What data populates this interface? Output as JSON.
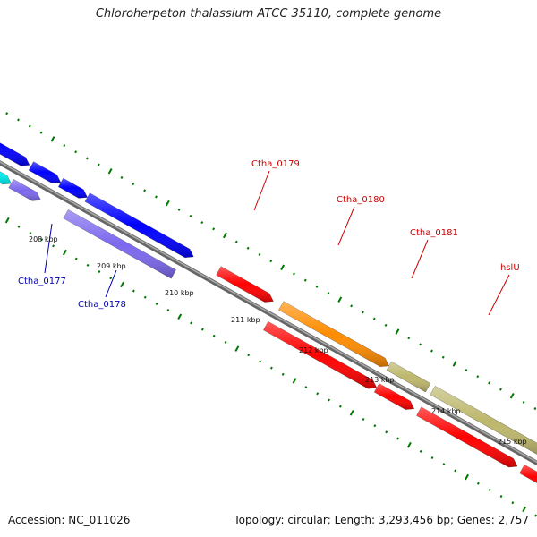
{
  "title": "Chloroherpeton thalassium ATCC 35110, complete genome",
  "footer": {
    "accession": "Accession: NC_011026",
    "summary": "Topology: circular; Length: 3,293,456 bp; Genes: 2,757"
  },
  "colors": {
    "red": "#ff0000",
    "blue": "#0000ff",
    "slate": "#7b68ee",
    "cyan": "#00ffff",
    "orange": "#ff8c00",
    "khaki": "#bdb76b",
    "backbone": "#888888",
    "tick": "#007700",
    "label_red": "#cc0000",
    "label_blue": "#0000aa"
  },
  "kbp_labels": [
    "208 kbp",
    "209 kbp",
    "210 kbp",
    "211 kbp",
    "212 kbp",
    "213 kbp",
    "214 kbp",
    "215 kbp"
  ],
  "gene_labels": [
    {
      "text": "Ctha_0177",
      "color": "label_blue"
    },
    {
      "text": "Ctha_0178",
      "color": "label_blue"
    },
    {
      "text": "Ctha_0179",
      "color": "label_red"
    },
    {
      "text": "Ctha_0180",
      "color": "label_red"
    },
    {
      "text": "Ctha_0181",
      "color": "label_red"
    },
    {
      "text": "hslU",
      "color": "label_red"
    }
  ]
}
